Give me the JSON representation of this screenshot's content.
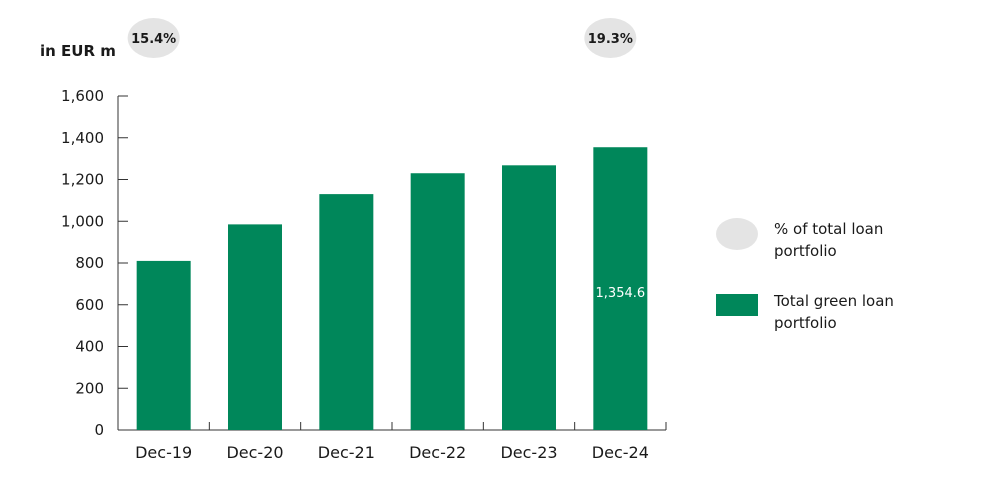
{
  "chart_data": {
    "type": "bar",
    "ylabel": "in EUR m",
    "categories": [
      "Dec-19",
      "Dec-20",
      "Dec-21",
      "Dec-22",
      "Dec-23",
      "Dec-24"
    ],
    "series": [
      {
        "name": "Total green loan portfolio",
        "values": [
          810,
          985,
          1130,
          1230,
          1268,
          1354.6
        ]
      }
    ],
    "ylim": [
      0,
      1600
    ],
    "yticks": [
      0,
      200,
      400,
      600,
      800,
      1000,
      1200,
      1400,
      1600
    ],
    "ytick_labels": [
      "0",
      "200",
      "400",
      "600",
      "800",
      "1,000",
      "1,200",
      "1,400",
      "1,600"
    ],
    "data_labels": [
      {
        "category": "Dec-24",
        "text": "1,354.6"
      }
    ],
    "share_bubbles": [
      {
        "category": "Dec-19",
        "text": "15.4%"
      },
      {
        "category": "Dec-24",
        "text": "19.3%"
      }
    ],
    "legend": [
      {
        "label": "% of total loan portfolio",
        "shape": "ellipse",
        "color": "#e4e4e4"
      },
      {
        "label": "Total green loan portfolio",
        "shape": "rect",
        "color": "#00875a"
      }
    ],
    "legend_position": "right",
    "grid": false,
    "colors": {
      "bar": "#00875a",
      "bubble": "#e4e4e4",
      "axis": "#333333",
      "data_label": "#ffffff"
    }
  }
}
